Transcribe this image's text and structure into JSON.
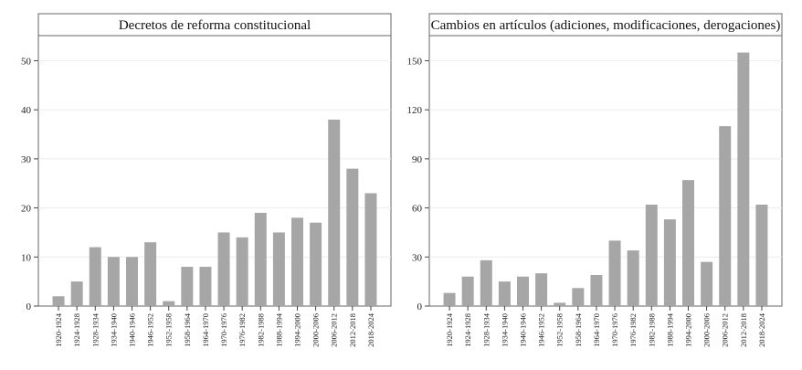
{
  "chart_data": [
    {
      "type": "bar",
      "title": "Decretos de reforma constitucional",
      "xlabel": "",
      "ylabel": "",
      "ylim": [
        0,
        54
      ],
      "yticks": [
        0,
        10,
        20,
        30,
        40,
        50
      ],
      "grid": true,
      "categories": [
        "1920-1924",
        "1924-1928",
        "1928-1934",
        "1934-1940",
        "1940-1946",
        "1946-1952",
        "1952-1958",
        "1958-1964",
        "1964-1970",
        "1970-1976",
        "1976-1982",
        "1982-1988",
        "1988-1994",
        "1994-2000",
        "2000-2006",
        "2006-2012",
        "2012-2018",
        "2018-2024"
      ],
      "values": [
        2,
        5,
        12,
        10,
        10,
        13,
        1,
        8,
        8,
        15,
        14,
        19,
        15,
        18,
        17,
        38,
        28,
        23
      ],
      "colors": {
        "bar": "#a6a6a6"
      }
    },
    {
      "type": "bar",
      "title": "Cambios en artículos (adiciones, modificaciones, derogaciones)",
      "xlabel": "",
      "ylabel": "",
      "ylim": [
        0,
        162
      ],
      "yticks": [
        0,
        30,
        60,
        90,
        120,
        150
      ],
      "grid": true,
      "categories": [
        "1920-1924",
        "1924-1928",
        "1928-1934",
        "1934-1940",
        "1940-1946",
        "1946-1952",
        "1952-1958",
        "1958-1964",
        "1964-1970",
        "1970-1976",
        "1976-1982",
        "1982-1988",
        "1988-1994",
        "1994-2000",
        "2000-2006",
        "2006-2012",
        "2012-2018",
        "2018-2024"
      ],
      "values": [
        8,
        18,
        28,
        15,
        18,
        20,
        2,
        11,
        19,
        40,
        34,
        62,
        53,
        77,
        27,
        110,
        155,
        62
      ],
      "colors": {
        "bar": "#a6a6a6"
      }
    }
  ]
}
